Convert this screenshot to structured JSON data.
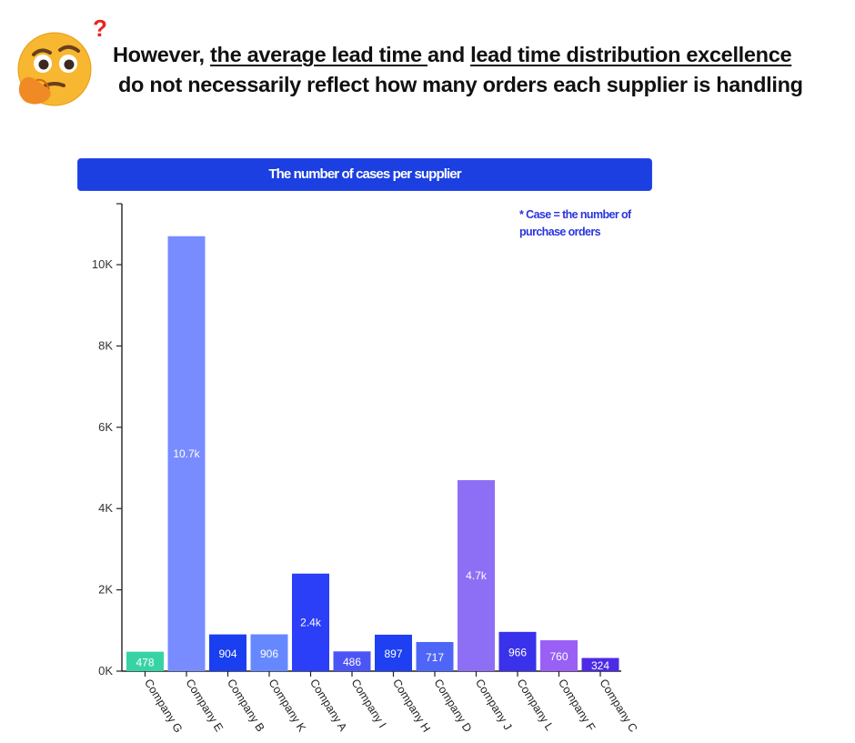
{
  "headline": {
    "prefix": "However, ",
    "term1": "the average lead time ",
    "connector": "and ",
    "term2": "lead time distribution excellence",
    "line2": "do not necessarily reflect how many orders each supplier is handling"
  },
  "emoji": {
    "icon_name": "thinking-face-icon",
    "question_mark": "?"
  },
  "chart_data": {
    "type": "bar",
    "title": "The number of cases per supplier",
    "note": [
      "* Case = the number of",
      "purchase orders"
    ],
    "categories": [
      "Company G",
      "Company E",
      "Company B",
      "Company K",
      "Company A",
      "Company I",
      "Company H",
      "Company D",
      "Company J",
      "Company L",
      "Company F",
      "Company C"
    ],
    "values": [
      478,
      10700,
      904,
      906,
      2400,
      486,
      897,
      717,
      4700,
      966,
      760,
      324
    ],
    "data_labels": [
      "478",
      "10.7k",
      "904",
      "906",
      "2.4k",
      "486",
      "897",
      "717",
      "4.7k",
      "966",
      "760",
      "324"
    ],
    "colors": [
      "#37d3a6",
      "#788cff",
      "#1a3ff0",
      "#6688ff",
      "#2b3ef8",
      "#4b55f5",
      "#1e40f2",
      "#4e66f7",
      "#8c6ff5",
      "#3a32ea",
      "#9a5ff4",
      "#4d2ae6"
    ],
    "yticks": [
      0,
      2000,
      4000,
      6000,
      8000,
      10000
    ],
    "ytick_labels": [
      "0K",
      "2K",
      "4K",
      "6K",
      "8K",
      "10K"
    ],
    "ylim": [
      0,
      11500
    ],
    "xlabel": "",
    "ylabel": "",
    "grid": false,
    "legend": "none"
  }
}
